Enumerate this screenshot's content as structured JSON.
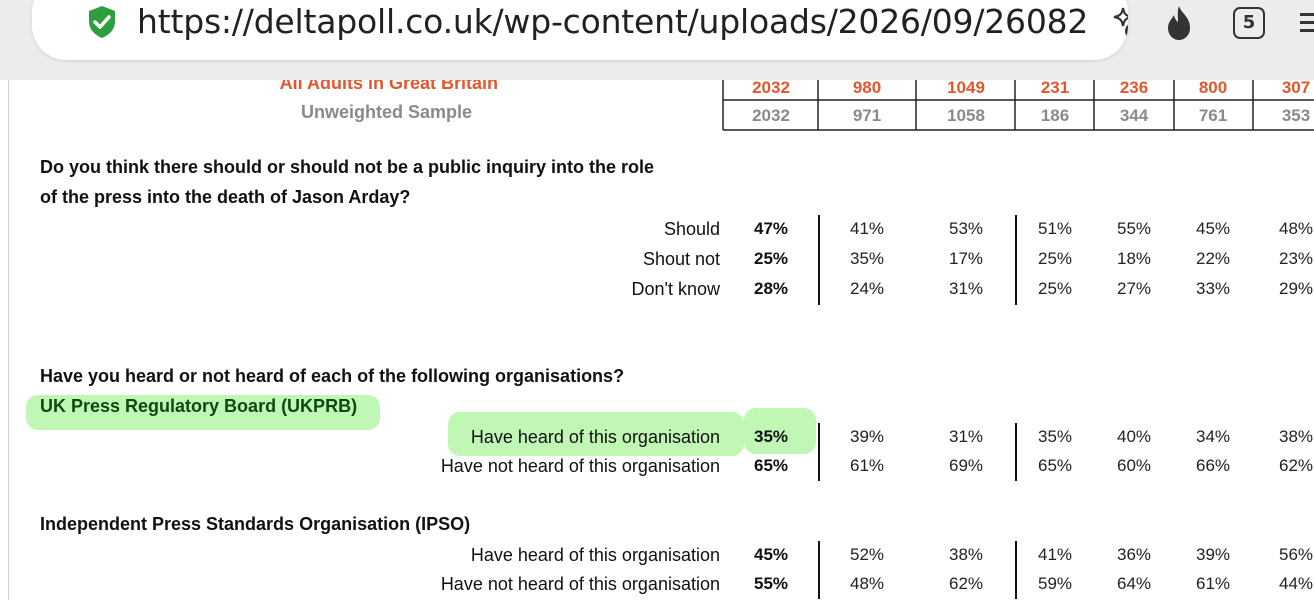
{
  "browser": {
    "url": "https://deltapoll.co.uk/wp-content/uploads/2026/09/26082",
    "tab_count": "5"
  },
  "header": {
    "weighted_label": "All Adults in Great Britain",
    "weighted_values": [
      "2032",
      "980",
      "1049",
      "231",
      "236",
      "800",
      "307"
    ],
    "unweighted_label": "Unweighted Sample",
    "unweighted_values": [
      "2032",
      "971",
      "1058",
      "186",
      "344",
      "761",
      "353"
    ]
  },
  "q1": {
    "question_line1": "Do you think there should or should not be a public inquiry into the role",
    "question_line2": "of the press into the death of Jason Arday?",
    "rows": [
      {
        "label": "Should",
        "total": "47%",
        "values": [
          "41%",
          "53%",
          "51%",
          "55%",
          "45%",
          "48%"
        ]
      },
      {
        "label": "Shout not",
        "total": "25%",
        "values": [
          "35%",
          "17%",
          "25%",
          "18%",
          "22%",
          "23%"
        ]
      },
      {
        "label": "Don't know",
        "total": "28%",
        "values": [
          "24%",
          "31%",
          "25%",
          "27%",
          "33%",
          "29%"
        ]
      }
    ]
  },
  "q2": {
    "question": "Have you heard or not heard of each of the following organisations?",
    "org1": {
      "name": "UK Press Regulatory Board (UKPRB)",
      "rows": [
        {
          "label": "Have heard of this organisation",
          "total": "35%",
          "values": [
            "39%",
            "31%",
            "35%",
            "40%",
            "34%",
            "38%"
          ]
        },
        {
          "label": "Have not heard of this organisation",
          "total": "65%",
          "values": [
            "61%",
            "69%",
            "65%",
            "60%",
            "66%",
            "62%"
          ]
        }
      ]
    },
    "org2": {
      "name": "Independent Press Standards Organisation (IPSO)",
      "rows": [
        {
          "label": "Have heard of this organisation",
          "total": "45%",
          "values": [
            "52%",
            "38%",
            "41%",
            "36%",
            "39%",
            "56%"
          ]
        },
        {
          "label": "Have not heard of this organisation",
          "total": "55%",
          "values": [
            "48%",
            "62%",
            "59%",
            "64%",
            "61%",
            "44%"
          ]
        }
      ]
    }
  },
  "colors": {
    "weighted_text": "#e4572e",
    "unweighted_text": "#8a8a8a",
    "highlight": "#8cf078"
  }
}
